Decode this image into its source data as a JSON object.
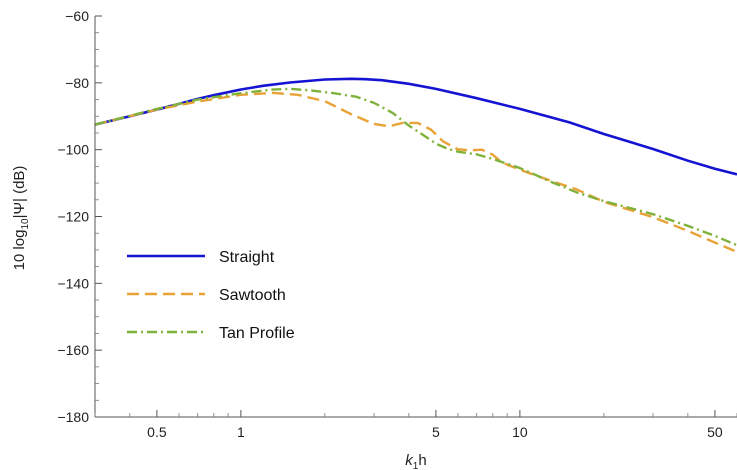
{
  "chart_data": {
    "type": "line",
    "xscale": "log",
    "xlim": [
      0.3,
      60
    ],
    "ylim": [
      -180,
      -60
    ],
    "xlabel": {
      "italic": "k",
      "sub": "1",
      "rest": "h"
    },
    "ylabel": {
      "pre": "10 log",
      "sub": "10",
      "post": "|Ψ| (dB)"
    },
    "x_ticks": [
      0.5,
      1,
      5,
      10,
      50
    ],
    "x_tick_labels": [
      "0.5",
      "1",
      "5",
      "10",
      "50"
    ],
    "y_ticks": [
      -60,
      -80,
      -100,
      -120,
      -140,
      -160,
      -180
    ],
    "y_tick_labels": [
      "−60",
      "−80",
      "−100",
      "−120",
      "−140",
      "−160",
      "−180"
    ],
    "legend_position": "lower-left",
    "grid": false,
    "series": [
      {
        "name": "Straight",
        "color": "#1414d2",
        "dash": "solid",
        "x": [
          0.3,
          0.4,
          0.5,
          0.6,
          0.7,
          0.8,
          1.0,
          1.2,
          1.5,
          2.0,
          2.5,
          2.8,
          3.2,
          4.0,
          5.0,
          7.0,
          10.0,
          15.0,
          20.0,
          30.0,
          40.0,
          50.0,
          60.0
        ],
        "y": [
          -92.5,
          -90.0,
          -88.0,
          -86.3,
          -84.8,
          -83.7,
          -82.0,
          -80.9,
          -79.9,
          -79.0,
          -78.8,
          -78.9,
          -79.2,
          -80.3,
          -81.8,
          -84.6,
          -87.8,
          -91.8,
          -95.3,
          -99.8,
          -103.3,
          -105.7,
          -107.4
        ]
      },
      {
        "name": "Sawtooth",
        "color": "#e8a235",
        "dash": "dashed",
        "x": [
          0.3,
          0.5,
          0.7,
          1.0,
          1.3,
          1.6,
          2.0,
          2.5,
          3.0,
          3.4,
          3.8,
          4.3,
          4.8,
          5.3,
          6.0,
          6.7,
          7.3,
          8.0,
          8.6,
          10.0,
          13.0,
          16.0,
          20.0,
          30.0,
          40.0,
          50.0,
          60.0
        ],
        "y": [
          -92.5,
          -88.0,
          -85.6,
          -83.6,
          -83.0,
          -83.6,
          -85.5,
          -89.5,
          -92.3,
          -93.0,
          -92.0,
          -92.0,
          -94.0,
          -97.5,
          -99.9,
          -100.2,
          -100.0,
          -101.5,
          -103.8,
          -106.0,
          -109.4,
          -111.9,
          -115.6,
          -120.2,
          -124.3,
          -127.8,
          -130.6
        ]
      },
      {
        "name": "Tan Profile",
        "color": "#7fb23a",
        "dash": "dashdot",
        "x": [
          0.3,
          0.5,
          0.7,
          1.0,
          1.3,
          1.5,
          1.8,
          2.2,
          2.6,
          3.0,
          3.5,
          4.0,
          4.5,
          5.0,
          5.5,
          6.0,
          7.0,
          8.0,
          10.0,
          13.0,
          16.0,
          20.0,
          30.0,
          40.0,
          50.0,
          60.0
        ],
        "y": [
          -92.5,
          -87.8,
          -85.0,
          -83.1,
          -82.0,
          -81.8,
          -82.3,
          -83.2,
          -84.2,
          -86.0,
          -89.0,
          -92.8,
          -95.6,
          -98.2,
          -99.7,
          -100.6,
          -101.4,
          -102.8,
          -105.5,
          -109.7,
          -112.8,
          -115.4,
          -119.3,
          -122.8,
          -125.8,
          -128.6
        ]
      }
    ]
  }
}
